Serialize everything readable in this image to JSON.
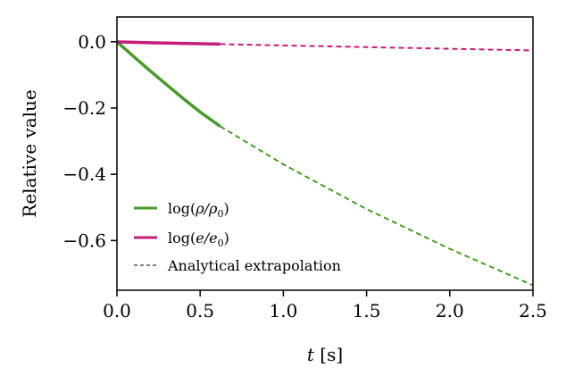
{
  "chart_data": {
    "type": "line",
    "title": "",
    "xlabel": "t [s]",
    "ylabel": "Relative value",
    "xlim": [
      0.0,
      2.5
    ],
    "ylim": [
      -0.75,
      0.075
    ],
    "x_ticks": [
      0.0,
      0.5,
      1.0,
      1.5,
      2.0,
      2.5
    ],
    "x_tick_labels": [
      "0.0",
      "0.5",
      "1.0",
      "1.5",
      "2.0",
      "2.5"
    ],
    "y_ticks": [
      0.0,
      -0.2,
      -0.4,
      -0.6
    ],
    "y_tick_labels": [
      "0.0",
      "−0.2",
      "−0.4",
      "−0.6"
    ],
    "grid": false,
    "legend_position": "lower-left",
    "series": [
      {
        "name": "log(ρ/ρ₀)",
        "style": "solid",
        "color": "#4a9a2a",
        "x": [
          0.0,
          0.1,
          0.2,
          0.3,
          0.4,
          0.5,
          0.62
        ],
        "y": [
          0.0,
          -0.044,
          -0.088,
          -0.13,
          -0.172,
          -0.212,
          -0.255
        ]
      },
      {
        "name": "log(e/e₀)",
        "style": "solid",
        "color": "#c41e7a",
        "x": [
          0.0,
          0.2,
          0.4,
          0.62
        ],
        "y": [
          0.0,
          -0.003,
          -0.005,
          -0.007
        ]
      },
      {
        "name": "",
        "style": "dashed",
        "color": "#4a9a2a",
        "x": [
          0.62,
          1.0,
          1.5,
          2.0,
          2.5
        ],
        "y": [
          -0.255,
          -0.37,
          -0.505,
          -0.625,
          -0.735
        ]
      },
      {
        "name": "",
        "style": "dashed",
        "color": "#c41e7a",
        "x": [
          0.62,
          1.0,
          1.5,
          2.0,
          2.5
        ],
        "y": [
          -0.007,
          -0.011,
          -0.016,
          -0.021,
          -0.026
        ]
      }
    ],
    "legend": [
      {
        "label_main": "log(",
        "label_sym": "ρ/ρ",
        "label_sub": "0",
        "label_end": ")",
        "color": "#4a9a2a",
        "style": "solid"
      },
      {
        "label_main": "log(",
        "label_sym": "e/e",
        "label_sub": "0",
        "label_end": ")",
        "color": "#c41e7a",
        "style": "solid"
      },
      {
        "label_main": "Analytical extrapolation",
        "label_sym": "",
        "label_sub": "",
        "label_end": "",
        "color": "#000000",
        "style": "dashed"
      }
    ]
  }
}
